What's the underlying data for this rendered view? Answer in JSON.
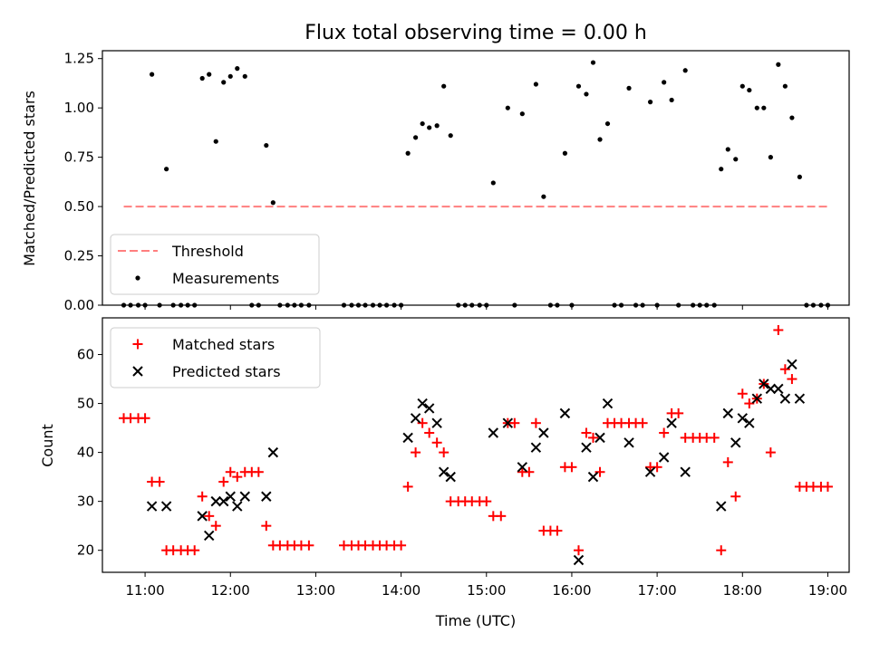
{
  "title": "Flux total observing time = 0.00 h",
  "chart_data": [
    {
      "type": "scatter",
      "ylabel": "Matched/Predicted stars",
      "xlim": [
        10.5,
        19.25
      ],
      "ylim": [
        0.0,
        1.29
      ],
      "yticks": [
        0.0,
        0.25,
        0.5,
        0.75,
        1.0,
        1.25
      ],
      "ytick_labels": [
        "0.00",
        "0.25",
        "0.50",
        "0.75",
        "1.00",
        "1.25"
      ],
      "legend_position": "lower-left",
      "colors": {
        "threshold": "#ff7f7f",
        "measurements": "#000000"
      },
      "series": [
        {
          "name": "Threshold",
          "kind": "dashed-line",
          "x": [
            10.75,
            19.0
          ],
          "y": [
            0.5,
            0.5
          ]
        },
        {
          "name": "Measurements",
          "kind": "dots",
          "x": [
            10.75,
            10.83,
            10.92,
            11.0,
            11.08,
            11.17,
            11.25,
            11.33,
            11.42,
            11.5,
            11.58,
            11.67,
            11.75,
            11.83,
            11.92,
            12.0,
            12.08,
            12.17,
            12.25,
            12.33,
            12.42,
            12.5,
            12.58,
            12.67,
            12.75,
            12.83,
            12.92,
            13.33,
            13.42,
            13.5,
            13.58,
            13.67,
            13.75,
            13.83,
            13.92,
            14.0,
            14.08,
            14.17,
            14.25,
            14.33,
            14.42,
            14.5,
            14.58,
            14.67,
            14.75,
            14.83,
            14.92,
            15.0,
            15.08,
            15.25,
            15.33,
            15.42,
            15.58,
            15.67,
            15.75,
            15.83,
            15.92,
            16.0,
            16.08,
            16.17,
            16.25,
            16.33,
            16.42,
            16.5,
            16.58,
            16.67,
            16.75,
            16.83,
            16.92,
            17.0,
            17.08,
            17.17,
            17.25,
            17.33,
            17.42,
            17.5,
            17.58,
            17.67,
            17.75,
            17.83,
            17.92,
            18.0,
            18.08,
            18.17,
            18.25,
            18.33,
            18.42,
            18.5,
            18.58,
            18.67,
            18.75,
            18.83,
            18.92,
            19.0
          ],
          "y": [
            0.0,
            0.0,
            0.0,
            0.0,
            1.17,
            0.0,
            0.69,
            0.0,
            0.0,
            0.0,
            0.0,
            1.15,
            1.17,
            0.83,
            1.13,
            1.16,
            1.2,
            1.16,
            0.0,
            0.0,
            0.81,
            0.52,
            0.0,
            0.0,
            0.0,
            0.0,
            0.0,
            0.0,
            0.0,
            0.0,
            0.0,
            0.0,
            0.0,
            0.0,
            0.0,
            0.0,
            0.77,
            0.85,
            0.92,
            0.9,
            0.91,
            1.11,
            0.86,
            0.0,
            0.0,
            0.0,
            0.0,
            0.0,
            0.62,
            1.0,
            0.0,
            0.97,
            1.12,
            0.55,
            0.0,
            0.0,
            0.77,
            0.0,
            1.11,
            1.07,
            1.23,
            0.84,
            0.92,
            0.0,
            0.0,
            1.1,
            0.0,
            0.0,
            1.03,
            0.0,
            1.13,
            1.04,
            0.0,
            1.19,
            0.0,
            0.0,
            0.0,
            0.0,
            0.69,
            0.79,
            0.74,
            1.11,
            1.09,
            1.0,
            1.0,
            0.75,
            1.22,
            1.11,
            0.95,
            0.65,
            0.0,
            0.0,
            0.0,
            0.0
          ]
        }
      ]
    },
    {
      "type": "scatter",
      "xlabel": "Time (UTC)",
      "ylabel": "Count",
      "xlim": [
        10.5,
        19.25
      ],
      "ylim": [
        15.5,
        67.5
      ],
      "yticks": [
        20,
        30,
        40,
        50,
        60
      ],
      "ytick_labels": [
        "20",
        "30",
        "40",
        "50",
        "60"
      ],
      "xticks": [
        11,
        12,
        13,
        14,
        15,
        16,
        17,
        18,
        19
      ],
      "xtick_labels": [
        "11:00",
        "12:00",
        "13:00",
        "14:00",
        "15:00",
        "16:00",
        "17:00",
        "18:00",
        "19:00"
      ],
      "legend_position": "upper-left",
      "colors": {
        "matched": "#ff0000",
        "predicted": "#000000"
      },
      "series": [
        {
          "name": "Matched stars",
          "marker": "+",
          "x": [
            10.75,
            10.83,
            10.92,
            11.0,
            11.08,
            11.17,
            11.25,
            11.33,
            11.42,
            11.5,
            11.58,
            11.67,
            11.75,
            11.83,
            11.92,
            12.0,
            12.08,
            12.17,
            12.25,
            12.33,
            12.42,
            12.5,
            12.58,
            12.67,
            12.75,
            12.83,
            12.92,
            13.33,
            13.42,
            13.5,
            13.58,
            13.67,
            13.75,
            13.83,
            13.92,
            14.0,
            14.08,
            14.17,
            14.25,
            14.33,
            14.42,
            14.5,
            14.58,
            14.67,
            14.75,
            14.83,
            14.92,
            15.0,
            15.08,
            15.17,
            15.25,
            15.33,
            15.42,
            15.5,
            15.58,
            15.67,
            15.75,
            15.83,
            15.92,
            16.0,
            16.08,
            16.17,
            16.25,
            16.33,
            16.42,
            16.5,
            16.58,
            16.67,
            16.75,
            16.83,
            16.92,
            17.0,
            17.08,
            17.17,
            17.25,
            17.33,
            17.42,
            17.5,
            17.58,
            17.67,
            17.75,
            17.83,
            17.92,
            18.0,
            18.08,
            18.17,
            18.25,
            18.33,
            18.42,
            18.5,
            18.58,
            18.67,
            18.75,
            18.83,
            18.92,
            19.0
          ],
          "y": [
            47,
            47,
            47,
            47,
            34,
            34,
            20,
            20,
            20,
            20,
            20,
            31,
            27,
            25,
            34,
            36,
            35,
            36,
            36,
            36,
            25,
            21,
            21,
            21,
            21,
            21,
            21,
            21,
            21,
            21,
            21,
            21,
            21,
            21,
            21,
            21,
            33,
            40,
            46,
            44,
            42,
            40,
            30,
            30,
            30,
            30,
            30,
            30,
            27,
            27,
            46,
            46,
            36,
            36,
            46,
            24,
            24,
            24,
            37,
            37,
            20,
            44,
            43,
            36,
            46,
            46,
            46,
            46,
            46,
            46,
            37,
            37,
            44,
            48,
            48,
            43,
            43,
            43,
            43,
            43,
            20,
            38,
            31,
            52,
            50,
            51,
            54,
            40,
            65,
            57,
            55,
            33,
            33,
            33,
            33,
            33
          ]
        },
        {
          "name": "Predicted stars",
          "marker": "x",
          "x": [
            11.08,
            11.25,
            11.67,
            11.75,
            11.83,
            11.92,
            12.0,
            12.08,
            12.17,
            12.42,
            12.5,
            14.08,
            14.17,
            14.25,
            14.33,
            14.42,
            14.5,
            14.58,
            15.08,
            15.25,
            15.42,
            15.58,
            15.67,
            15.92,
            16.08,
            16.17,
            16.25,
            16.33,
            16.42,
            16.67,
            16.92,
            17.08,
            17.17,
            17.33,
            17.75,
            17.83,
            17.92,
            18.0,
            18.08,
            18.17,
            18.25,
            18.33,
            18.42,
            18.5,
            18.58,
            18.67
          ],
          "y": [
            29,
            29,
            27,
            23,
            30,
            30,
            31,
            29,
            31,
            31,
            40,
            43,
            47,
            50,
            49,
            46,
            36,
            35,
            44,
            46,
            37,
            41,
            44,
            48,
            18,
            41,
            35,
            43,
            50,
            42,
            36,
            39,
            46,
            36,
            29,
            48,
            42,
            47,
            46,
            51,
            54,
            53,
            53,
            51,
            58,
            51
          ]
        }
      ]
    }
  ]
}
